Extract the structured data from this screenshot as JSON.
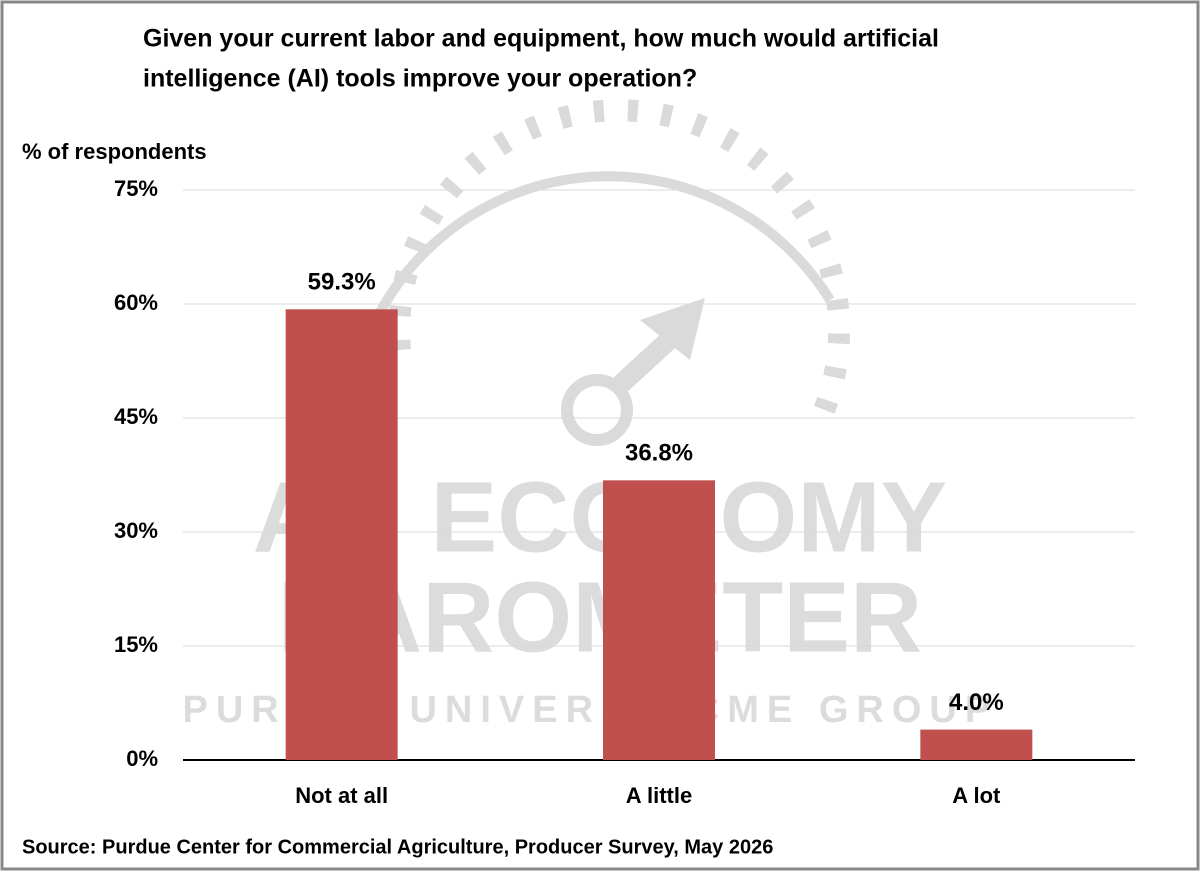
{
  "chart_data": {
    "type": "bar",
    "title": [
      "Given your current labor and equipment, how much would artificial",
      "intelligence (AI) tools improve your operation?"
    ],
    "y_label": "% of respondents",
    "categories": [
      "Not at all",
      "A little",
      "A lot"
    ],
    "values": [
      59.3,
      36.8,
      4.0
    ],
    "value_labels": [
      "59.3%",
      "36.8%",
      "4.0%"
    ],
    "color": "#c0504d",
    "ylim": [
      0,
      75
    ],
    "yticks": [
      {
        "value": 0,
        "label": "0%"
      },
      {
        "value": 15,
        "label": "15%"
      },
      {
        "value": 30,
        "label": "30%"
      },
      {
        "value": 45,
        "label": "45%"
      },
      {
        "value": 60,
        "label": "60%"
      },
      {
        "value": 75,
        "label": "75%"
      }
    ],
    "grid": true,
    "source": "Source: Purdue Center for Commercial Agriculture, Producer Survey, May 2026",
    "watermark": [
      "AG ECONOMY",
      "BAROMETER",
      "PURDUE UNIVERSITY",
      "CME GROUP"
    ]
  }
}
